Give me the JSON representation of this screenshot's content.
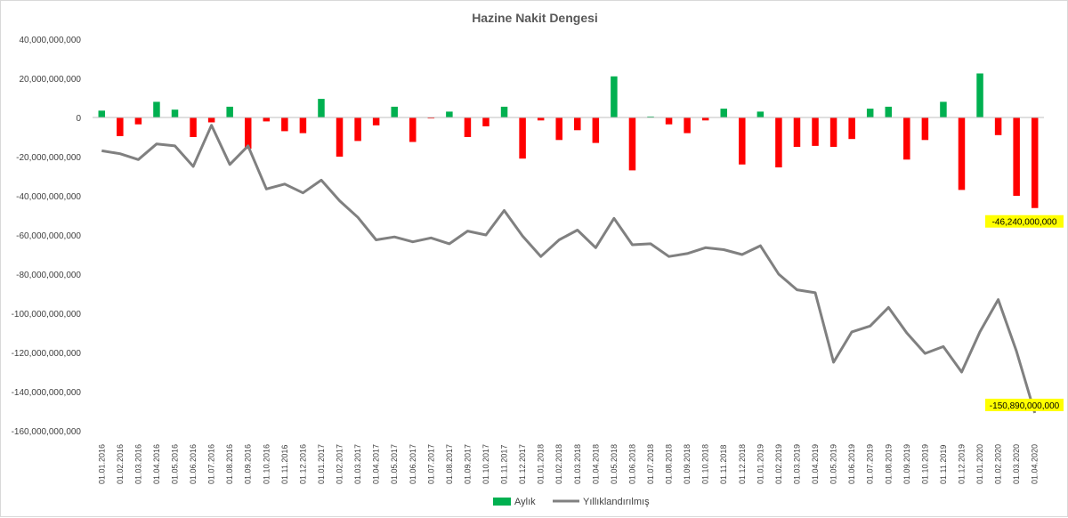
{
  "chart_data": {
    "type": "bar+line",
    "title": "Hazine Nakit Dengesi",
    "ylim": [
      -160000000000,
      40000000000
    ],
    "yticks": [
      "40,000,000,000",
      "20,000,000,000",
      "0",
      "-20,000,000,000",
      "-40,000,000,000",
      "-60,000,000,000",
      "-80,000,000,000",
      "-100,000,000,000",
      "-120,000,000,000",
      "-140,000,000,000",
      "-160,000,000,000"
    ],
    "ytick_values": [
      40000000000,
      20000000000,
      0,
      -20000000000,
      -40000000000,
      -60000000000,
      -80000000000,
      -100000000000,
      -120000000000,
      -140000000000,
      -160000000000
    ],
    "grid": false,
    "legend_position": "bottom",
    "colors": {
      "positive": "#00b050",
      "negative": "#ff0000",
      "line": "#808080",
      "callout": "#ffff00"
    },
    "categories": [
      "01.01.2016",
      "01.02.2016",
      "01.03.2016",
      "01.04.2016",
      "01.05.2016",
      "01.06.2016",
      "01.07.2016",
      "01.08.2016",
      "01.09.2016",
      "01.10.2016",
      "01.11.2016",
      "01.12.2016",
      "01.01.2017",
      "01.02.2017",
      "01.03.2017",
      "01.04.2017",
      "01.05.2017",
      "01.06.2017",
      "01.07.2017",
      "01.08.2017",
      "01.09.2017",
      "01.10.2017",
      "01.11.2017",
      "01.12.2017",
      "01.01.2018",
      "01.02.2018",
      "01.03.2018",
      "01.04.2018",
      "01.05.2018",
      "01.06.2018",
      "01.07.2018",
      "01.08.2018",
      "01.09.2018",
      "01.10.2018",
      "01.11.2018",
      "01.12.2018",
      "01.01.2019",
      "01.02.2019",
      "01.03.2019",
      "01.04.2019",
      "01.05.2019",
      "01.06.2019",
      "01.07.2019",
      "01.08.2019",
      "01.09.2019",
      "01.10.2019",
      "01.11.2019",
      "01.12.2019",
      "01.01.2020",
      "01.02.2020",
      "01.03.2020",
      "01.04.2020"
    ],
    "series": [
      {
        "name": "Aylık",
        "type": "bar",
        "values": [
          3500000000,
          -9500000000,
          -3500000000,
          8000000000,
          4000000000,
          -10000000000,
          -2500000000,
          5500000000,
          -16000000000,
          -2000000000,
          -7000000000,
          -8000000000,
          9500000000,
          -20000000000,
          -12000000000,
          -4000000000,
          5500000000,
          -12500000000,
          -500000000,
          3000000000,
          -10000000000,
          -4500000000,
          5500000000,
          -21000000000,
          -1500000000,
          -11500000000,
          -6500000000,
          -13000000000,
          21000000000,
          -27000000000,
          500000000,
          -3500000000,
          -8000000000,
          -1500000000,
          4500000000,
          -24000000000,
          3000000000,
          -25500000000,
          -15000000000,
          -14500000000,
          -15000000000,
          -11000000000,
          4500000000,
          5500000000,
          -21500000000,
          -11500000000,
          8000000000,
          -37000000000,
          22500000000,
          -9000000000,
          -40000000000,
          -46240000000
        ]
      },
      {
        "name": "Yıllıklandırılmış",
        "type": "line",
        "values": [
          -17000000000,
          -18500000000,
          -21500000000,
          -13500000000,
          -14500000000,
          -25000000000,
          -4000000000,
          -24000000000,
          -14500000000,
          -36500000000,
          -34000000000,
          -38500000000,
          -32000000000,
          -42500000000,
          -51000000000,
          -62500000000,
          -61000000000,
          -63500000000,
          -61500000000,
          -64500000000,
          -58000000000,
          -60000000000,
          -47500000000,
          -60500000000,
          -71000000000,
          -62500000000,
          -57500000000,
          -66500000000,
          -51500000000,
          -65000000000,
          -64500000000,
          -71000000000,
          -69500000000,
          -66500000000,
          -67500000000,
          -70000000000,
          -65500000000,
          -80000000000,
          -88000000000,
          -89500000000,
          -125000000000,
          -109500000000,
          -106500000000,
          -97000000000,
          -110000000000,
          -120500000000,
          -117000000000,
          -130000000000,
          -109500000000,
          -93000000000,
          -119500000000,
          -150890000000
        ]
      }
    ],
    "annotations": [
      {
        "text": "-46,240,000,000",
        "series": "Aylık",
        "index": 51
      },
      {
        "text": "-150,890,000,000",
        "series": "Yıllıklandırılmış",
        "index": 51
      }
    ]
  }
}
